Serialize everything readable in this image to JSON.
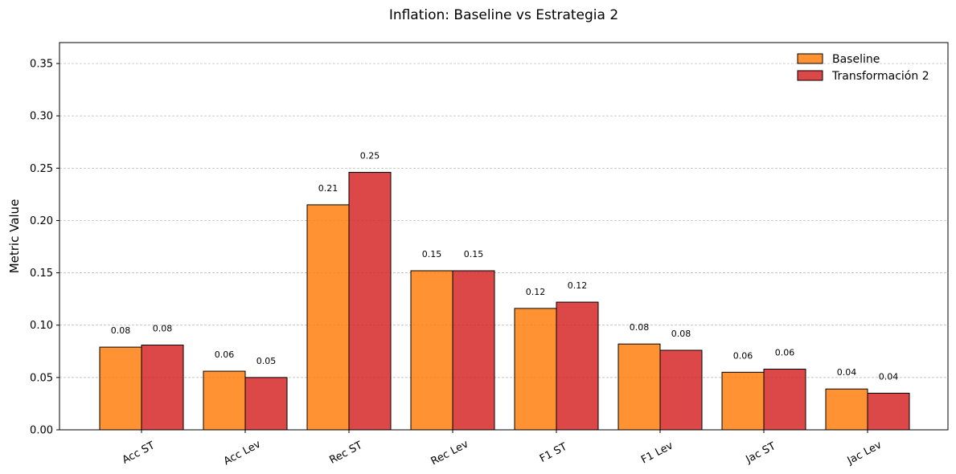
{
  "chart_data": {
    "type": "bar",
    "title": "Inflation: Baseline vs Estrategia 2",
    "xlabel": "",
    "ylabel": "Metric Value",
    "categories": [
      "Acc ST",
      "Acc Lev",
      "Rec ST",
      "Rec Lev",
      "F1 ST",
      "F1 Lev",
      "Jac ST",
      "Jac Lev"
    ],
    "series": [
      {
        "name": "Baseline",
        "color": "#ff7f0e",
        "values": [
          0.079,
          0.056,
          0.215,
          0.152,
          0.116,
          0.082,
          0.055,
          0.039
        ],
        "labels": [
          "0.08",
          "0.06",
          "0.21",
          "0.15",
          "0.12",
          "0.08",
          "0.06",
          "0.04"
        ]
      },
      {
        "name": "Transformación 2",
        "color": "#d62728",
        "values": [
          0.081,
          0.05,
          0.246,
          0.152,
          0.122,
          0.076,
          0.058,
          0.035
        ],
        "labels": [
          "0.08",
          "0.05",
          "0.25",
          "0.15",
          "0.12",
          "0.08",
          "0.06",
          "0.04"
        ]
      }
    ],
    "ylim": [
      0,
      0.37
    ],
    "yticks": [
      "0.00",
      "0.05",
      "0.10",
      "0.15",
      "0.20",
      "0.25",
      "0.30",
      "0.35"
    ],
    "grid": "horizontal-dashed",
    "legend_position": "top-right"
  }
}
